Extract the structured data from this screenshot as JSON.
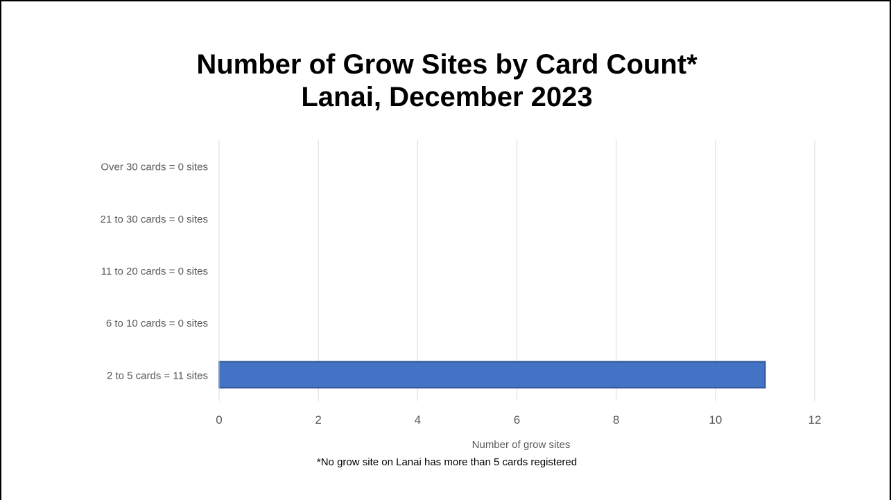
{
  "chart_data": {
    "type": "bar",
    "orientation": "horizontal",
    "title": "Number of Grow Sites by Card Count*",
    "subtitle": "Lanai, December 2023",
    "categories": [
      "2 to 5 cards = 11 sites",
      "6 to 10 cards = 0 sites",
      "11 to 20 cards = 0 sites",
      "21 to 30 cards = 0 sites",
      "Over 30 cards = 0 sites"
    ],
    "values": [
      11,
      0,
      0,
      0,
      0
    ],
    "xlabel": "Number of grow sites",
    "ylabel": "",
    "xlim": [
      0,
      12
    ],
    "xticks": [
      "0",
      "2",
      "4",
      "6",
      "8",
      "10",
      "12"
    ],
    "grid": "vertical",
    "legend": "none",
    "colors": {
      "bar": "#4472c4",
      "bar_edge": "#2f5597",
      "grid": "#d9d9d9",
      "axis": "#d9d9d9",
      "tick_label": "#595959"
    }
  },
  "footnote": "*No grow site on Lanai has more than 5 cards registered"
}
